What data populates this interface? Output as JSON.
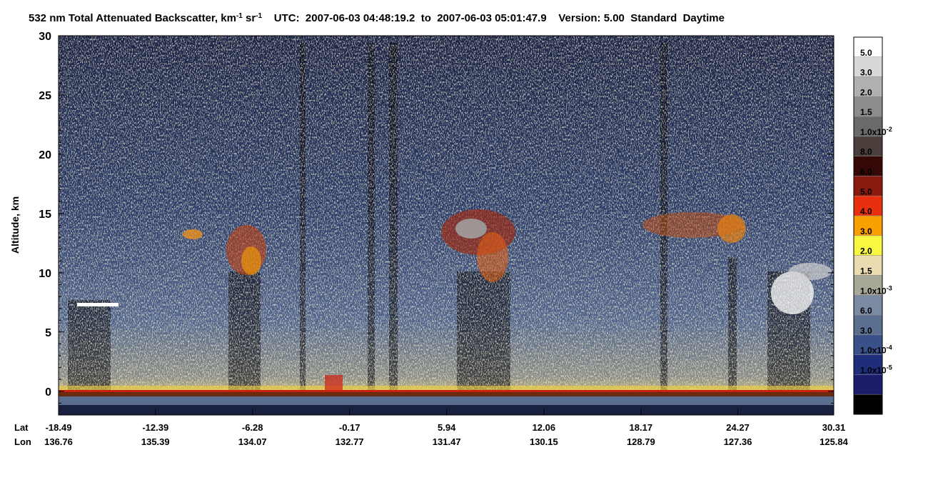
{
  "chart_data": {
    "type": "heatmap",
    "title_parts": [
      {
        "text": "532 nm Total Attenuated Backscatter, km"
      },
      {
        "text": "-1",
        "sup": true
      },
      {
        "text": " sr"
      },
      {
        "text": "-1",
        "sup": true
      },
      {
        "text": "    UTC:  2007-06-03 04:48:19.2  to  2007-06-03 05:01:47.9    Version: 5.00  Standard  Daytime"
      }
    ],
    "ylabel": "Altitude, km",
    "ylim": [
      -2,
      30
    ],
    "yticks": [
      0,
      5,
      10,
      15,
      20,
      25,
      30
    ],
    "x_row_labels": [
      "Lat",
      "Lon"
    ],
    "xlim": [
      -18.49,
      30.31
    ],
    "xticks": [
      -18.49,
      -12.39,
      -6.28,
      -0.17,
      5.94,
      12.06,
      18.17,
      24.27,
      30.31
    ],
    "lon": [
      136.76,
      135.39,
      134.07,
      132.77,
      131.47,
      130.15,
      128.79,
      127.36,
      125.84
    ],
    "colorbar_colors": [
      "#ffffff",
      "#d8d8d8",
      "#b0b0b0",
      "#8c8c8c",
      "#6a6a6a",
      "#4a3f3b",
      "#350808",
      "#8a1a10",
      "#e83010",
      "#f8a000",
      "#f8f840",
      "#eadcb0",
      "#a8a898",
      "#7a8aa2",
      "#5a6e90",
      "#3a5088",
      "#1e2e7a",
      "#1c1c6a",
      "#000000"
    ],
    "colorbar_labels": [
      {
        "text": "5.0"
      },
      {
        "text": "3.0"
      },
      {
        "text": "2.0"
      },
      {
        "text": "1.5"
      },
      {
        "text": "1.0x10",
        "exp": "-2"
      },
      {
        "text": "8.0"
      },
      {
        "text": "6.0"
      },
      {
        "text": "5.0"
      },
      {
        "text": "4.0"
      },
      {
        "text": "3.0"
      },
      {
        "text": "2.0"
      },
      {
        "text": "1.5"
      },
      {
        "text": "1.0x10",
        "exp": "-3"
      },
      {
        "text": "6.0"
      },
      {
        "text": "3.0"
      },
      {
        "text": "1.0x10",
        "exp": "-4"
      },
      {
        "text": "1.0x10",
        "exp": "-5"
      }
    ]
  }
}
